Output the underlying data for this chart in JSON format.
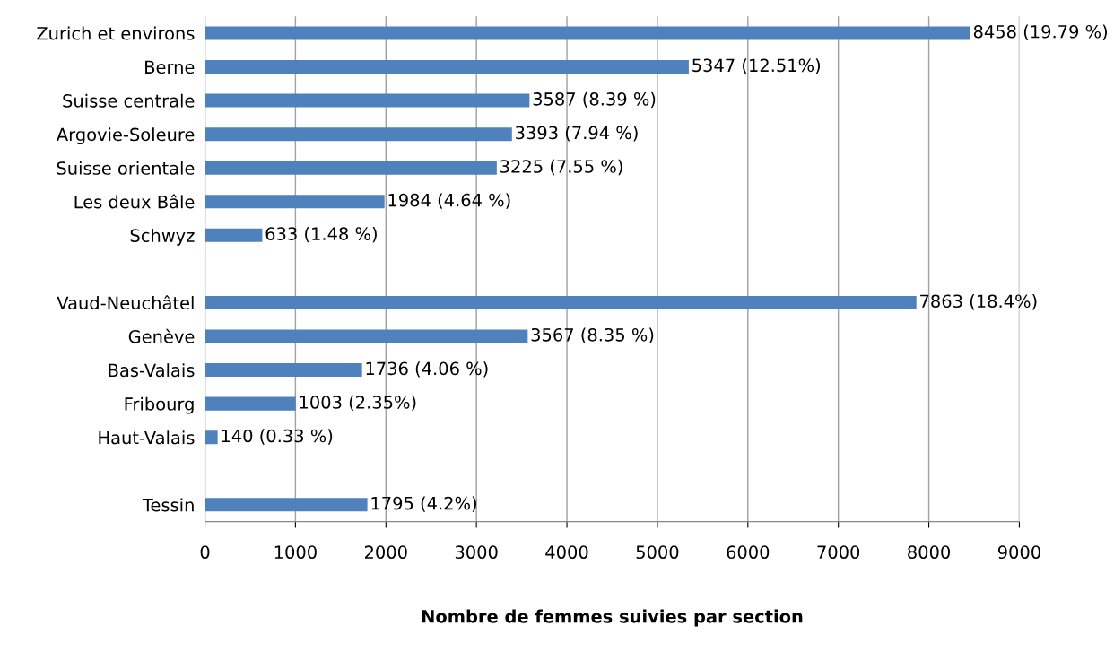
{
  "chart_data": {
    "type": "bar",
    "orientation": "horizontal",
    "xlabel": "Nombre de femmes suivies par section",
    "categories": [
      "Zurich et environs",
      "Berne",
      "Suisse centrale",
      "Argovie-Soleure",
      "Suisse orientale",
      "Les deux Bâle",
      "Schwyz",
      null,
      "Vaud-Neuchâtel",
      "Genève",
      "Bas-Valais",
      "Fribourg",
      "Haut-Valais",
      null,
      "Tessin"
    ],
    "values": [
      8458,
      5347,
      3587,
      3393,
      3225,
      1984,
      633,
      null,
      7863,
      3567,
      1736,
      1003,
      140,
      null,
      1795
    ],
    "value_labels": [
      "8458 (19.79 %)",
      "5347 (12.51%)",
      "3587 (8.39 %)",
      "3393 (7.94 %)",
      "3225 (7.55 %)",
      "1984 (4.64 %)",
      "633 (1.48 %)",
      null,
      "7863 (18.4%)",
      "3567 (8.35 %)",
      "1736 (4.06 %)",
      "1003 (2.35%)",
      "140 (0.33 %)",
      null,
      "1795 (4.2%)"
    ],
    "color": "#4f81bd",
    "xlim": [
      0,
      9000
    ],
    "xticks": [
      0,
      1000,
      2000,
      3000,
      4000,
      5000,
      6000,
      7000,
      8000,
      9000
    ],
    "grid": "x",
    "legend": false
  }
}
